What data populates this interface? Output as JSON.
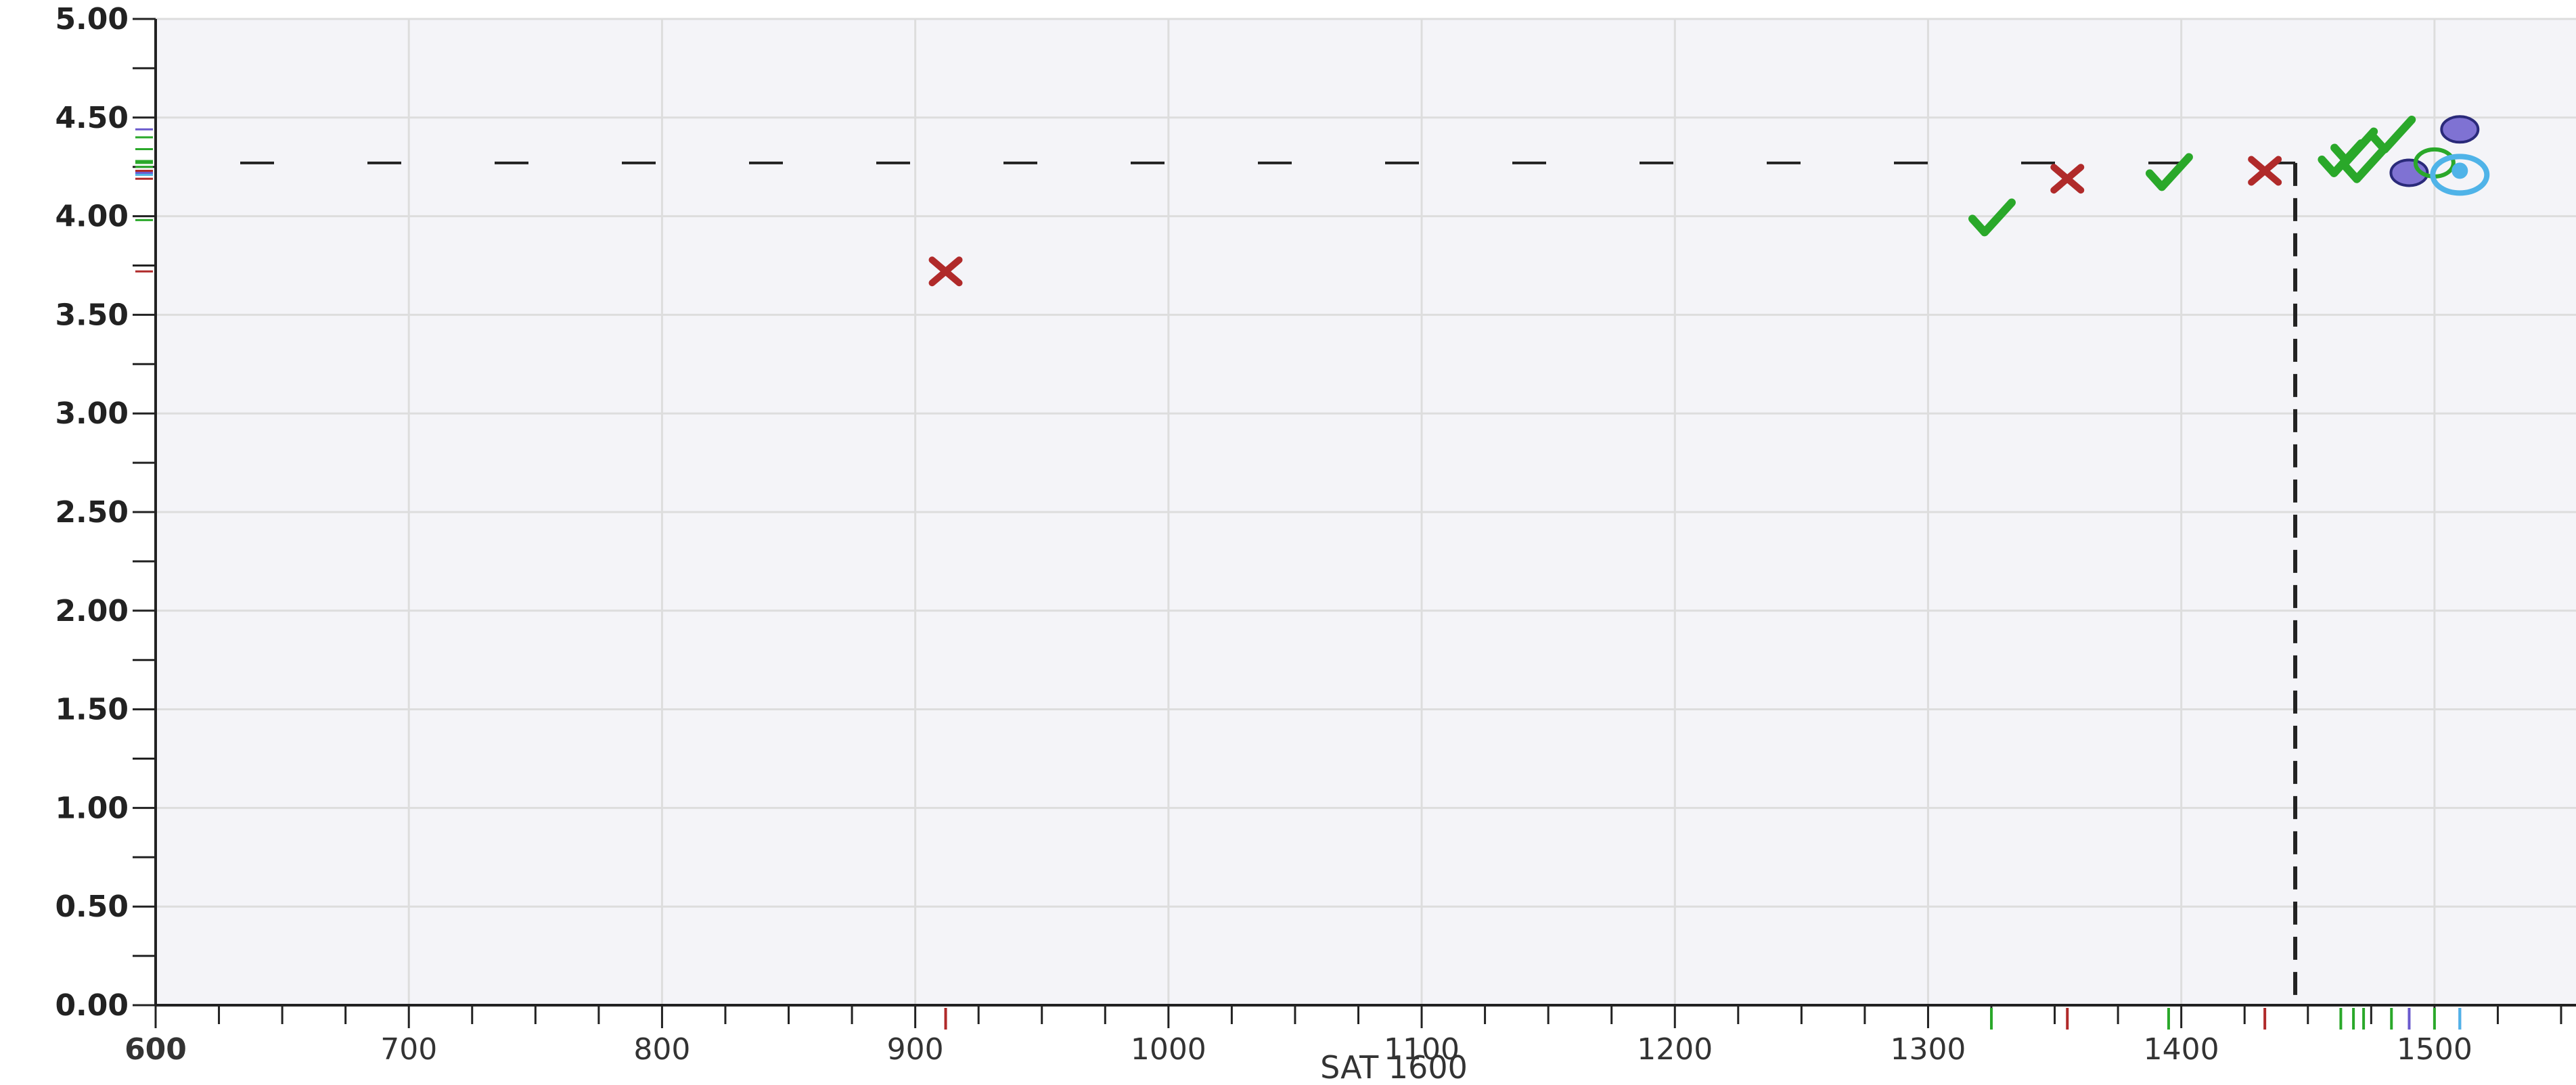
{
  "chart_data": {
    "type": "scatter",
    "title": "",
    "xlabel": "SAT 1600",
    "ylabel": "",
    "xlim": [
      600,
      1550
    ],
    "ylim": [
      0,
      5
    ],
    "x_ticks": [
      "600",
      "700",
      "800",
      "900",
      "1000",
      "1100",
      "1200",
      "1300",
      "1400",
      "1500"
    ],
    "y_ticks": [
      "0.00",
      "0.50",
      "1.00",
      "1.50",
      "2.00",
      "2.50",
      "3.00",
      "3.50",
      "4.00",
      "4.50",
      "5.00"
    ],
    "grid": true,
    "legend": "none",
    "reference_lines": {
      "x": 1445,
      "y": 4.27
    },
    "colors": {
      "accepted": "#2aa82a",
      "rejected": "#b02a2a",
      "waitlisted": "#6a5acd",
      "applicant": "#4fb3e8",
      "grid": "#dddddd",
      "background": "#f4f4f8"
    },
    "series": [
      {
        "marker": "check",
        "color": "#2aa82a",
        "points": [
          {
            "x": 1325,
            "y": 3.98
          },
          {
            "x": 1395,
            "y": 4.21
          },
          {
            "x": 1463,
            "y": 4.28
          },
          {
            "x": 1468,
            "y": 4.34
          },
          {
            "x": 1472,
            "y": 4.25
          },
          {
            "x": 1483,
            "y": 4.4
          }
        ]
      },
      {
        "marker": "x",
        "color": "#b02a2a",
        "points": [
          {
            "x": 912,
            "y": 3.72
          },
          {
            "x": 1355,
            "y": 4.19
          },
          {
            "x": 1433,
            "y": 4.23
          }
        ]
      },
      {
        "marker": "circle",
        "color": "#6a5acd",
        "points": [
          {
            "x": 1490,
            "y": 4.22
          },
          {
            "x": 1510,
            "y": 4.44
          }
        ]
      },
      {
        "marker": "circle-open",
        "color": "#2aa82a",
        "points": [
          {
            "x": 1500,
            "y": 4.27
          }
        ]
      },
      {
        "marker": "circle-ring",
        "color": "#4fb3e8",
        "points": [
          {
            "x": 1510,
            "y": 4.21
          }
        ]
      }
    ]
  }
}
